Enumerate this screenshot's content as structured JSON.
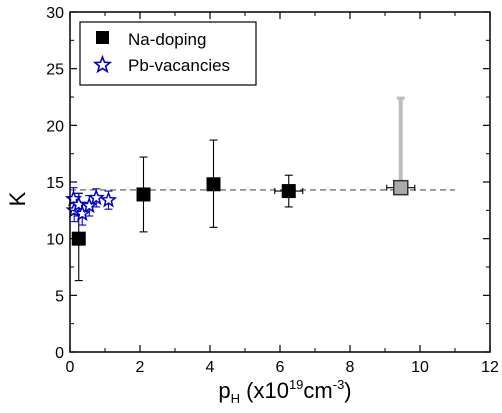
{
  "chart_data": {
    "type": "scatter",
    "xlim": [
      0,
      12
    ],
    "ylim": [
      0,
      30
    ],
    "x_ticks": [
      0,
      2,
      4,
      6,
      8,
      10,
      12
    ],
    "y_ticks": [
      0,
      5,
      10,
      15,
      20,
      25,
      30
    ],
    "xlabel": {
      "main": "p",
      "subscript": "H",
      "prefix": " (x10",
      "superscript1": "19",
      "middle": "cm",
      "superscript2": "-3",
      "suffix": ")"
    },
    "ylabel": "K",
    "legend_position": "top-left",
    "reference_line": {
      "y": 14.3,
      "x_start": 0,
      "x_end": 11,
      "style": "dashed"
    },
    "series": [
      {
        "name": "Na-doping",
        "marker": "filled-square",
        "color": "#000000",
        "points": [
          {
            "x": 0.25,
            "y": 10.0,
            "y_low": 6.3,
            "y_high": 14.0,
            "x_err": 0.1
          },
          {
            "x": 2.1,
            "y": 13.9,
            "y_low": 10.6,
            "y_high": 17.2,
            "x_err": 0.15
          },
          {
            "x": 4.1,
            "y": 14.8,
            "y_low": 11.0,
            "y_high": 18.7,
            "x_err": 0.15
          },
          {
            "x": 6.25,
            "y": 14.2,
            "y_low": 12.8,
            "y_high": 15.6,
            "x_err": 0.4
          }
        ]
      },
      {
        "name": "",
        "marker": "gray-square",
        "color": "#aaaaaa",
        "points": [
          {
            "x": 9.45,
            "y": 14.5,
            "y_low": 14.5,
            "y_high": 22.4,
            "x_err": 0.4
          }
        ]
      },
      {
        "name": "Pb-vacancies",
        "marker": "open-star",
        "color": "#0000cc",
        "points": [
          {
            "x": 0.1,
            "y": 13.5,
            "y_low": 12.5,
            "y_high": 14.5
          },
          {
            "x": 0.12,
            "y": 12.5,
            "y_low": 11.5,
            "y_high": 13.5
          },
          {
            "x": 0.25,
            "y": 13.0,
            "y_low": 12.0,
            "y_high": 14.0
          },
          {
            "x": 0.35,
            "y": 12.2,
            "y_low": 11.2,
            "y_high": 13.2
          },
          {
            "x": 0.55,
            "y": 12.9,
            "y_low": 12.0,
            "y_high": 13.8
          },
          {
            "x": 0.75,
            "y": 13.6,
            "y_low": 12.8,
            "y_high": 14.4
          },
          {
            "x": 1.1,
            "y": 13.4,
            "y_low": 12.6,
            "y_high": 14.2
          }
        ]
      }
    ]
  }
}
